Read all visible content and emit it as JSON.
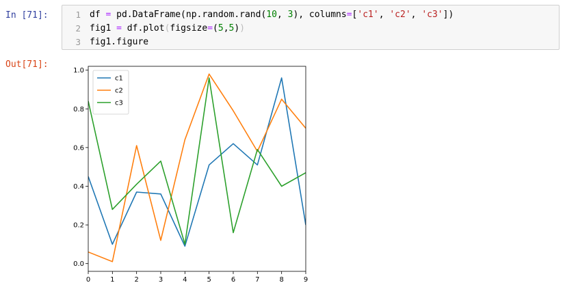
{
  "cell": {
    "in_prompt": "In [71]:",
    "out_prompt": "Out[71]:",
    "line_numbers": [
      "1",
      "2",
      "3"
    ],
    "code_lines": [
      [
        {
          "t": "df ",
          "c": ""
        },
        {
          "t": "=",
          "c": "op"
        },
        {
          "t": " pd.DataFrame(np.random.rand(",
          "c": ""
        },
        {
          "t": "10",
          "c": "num"
        },
        {
          "t": ", ",
          "c": ""
        },
        {
          "t": "3",
          "c": "num"
        },
        {
          "t": "), columns",
          "c": ""
        },
        {
          "t": "=",
          "c": "op"
        },
        {
          "t": "[",
          "c": ""
        },
        {
          "t": "'c1'",
          "c": "str"
        },
        {
          "t": ", ",
          "c": ""
        },
        {
          "t": "'c2'",
          "c": "str"
        },
        {
          "t": ", ",
          "c": ""
        },
        {
          "t": "'c3'",
          "c": "str"
        },
        {
          "t": "])",
          "c": ""
        }
      ],
      [
        {
          "t": "fig1 ",
          "c": ""
        },
        {
          "t": "=",
          "c": "op"
        },
        {
          "t": " df.plot",
          "c": ""
        },
        {
          "t": "(",
          "c": "br"
        },
        {
          "t": "figsize",
          "c": ""
        },
        {
          "t": "=",
          "c": "op"
        },
        {
          "t": "(",
          "c": ""
        },
        {
          "t": "5",
          "c": "num"
        },
        {
          "t": ",",
          "c": ""
        },
        {
          "t": "5",
          "c": "num"
        },
        {
          "t": ")",
          "c": ""
        },
        {
          "t": ")",
          "c": "br"
        }
      ],
      [
        {
          "t": "fig1.figure",
          "c": ""
        }
      ]
    ]
  },
  "colors": {
    "in_prompt": "#303f9f",
    "out_prompt": "#d84315",
    "c1": "#1f77b4",
    "c2": "#ff7f0e",
    "c3": "#2ca02c"
  },
  "chart_data": {
    "type": "line",
    "x": [
      0,
      1,
      2,
      3,
      4,
      5,
      6,
      7,
      8,
      9
    ],
    "xlim": [
      0,
      9
    ],
    "ylim": [
      0,
      1.0
    ],
    "xticks": [
      "0",
      "1",
      "2",
      "3",
      "4",
      "5",
      "6",
      "7",
      "8",
      "9"
    ],
    "yticks": [
      "0.0",
      "0.2",
      "0.4",
      "0.6",
      "0.8",
      "1.0"
    ],
    "legend_position": "upper-left",
    "grid": false,
    "series": [
      {
        "name": "c1",
        "color": "#1f77b4",
        "values": [
          0.45,
          0.1,
          0.37,
          0.36,
          0.09,
          0.51,
          0.62,
          0.51,
          0.96,
          0.2
        ]
      },
      {
        "name": "c2",
        "color": "#ff7f0e",
        "values": [
          0.06,
          0.01,
          0.61,
          0.12,
          0.64,
          0.98,
          0.79,
          0.58,
          0.85,
          0.7
        ]
      },
      {
        "name": "c3",
        "color": "#2ca02c",
        "values": [
          0.84,
          0.28,
          0.41,
          0.53,
          0.1,
          0.96,
          0.16,
          0.59,
          0.4,
          0.47
        ]
      }
    ]
  }
}
